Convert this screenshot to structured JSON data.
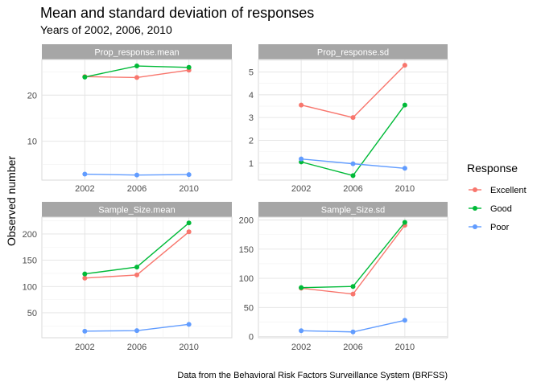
{
  "title": "Mean and standard deviation of responses",
  "subtitle": "Years of 2002, 2006, 2010",
  "caption": "Data from the Behavioral Risk Factors Surveillance System (BRFSS)",
  "ylabel": "Observed number",
  "legend": {
    "title": "Response",
    "placement": "right",
    "items": [
      {
        "label": "Excellent",
        "color": "#F8766D"
      },
      {
        "label": "Good",
        "color": "#00BA38"
      },
      {
        "label": "Poor",
        "color": "#619CFF"
      }
    ]
  },
  "chart_data": [
    {
      "type": "line",
      "title": "Prop_response.mean",
      "x": [
        2002,
        2006,
        2010
      ],
      "xticks": [
        "2002",
        "2006",
        "2010"
      ],
      "xlim": [
        1998.7,
        2013.3
      ],
      "ylim": [
        1.6,
        27.7
      ],
      "yticks": [
        10,
        20
      ],
      "grid": true,
      "series": [
        {
          "name": "Excellent",
          "color": "#F8766D",
          "values": [
            24.0,
            23.8,
            25.4
          ]
        },
        {
          "name": "Good",
          "color": "#00BA38",
          "values": [
            23.9,
            26.3,
            26.0
          ]
        },
        {
          "name": "Poor",
          "color": "#619CFF",
          "values": [
            2.9,
            2.7,
            2.8
          ]
        }
      ]
    },
    {
      "type": "line",
      "title": "Prop_response.sd",
      "x": [
        2002,
        2006,
        2010
      ],
      "xticks": [
        "2002",
        "2006",
        "2010"
      ],
      "xlim": [
        1998.7,
        2013.3
      ],
      "ylim": [
        0.25,
        5.55
      ],
      "yticks": [
        1,
        2,
        3,
        4,
        5
      ],
      "grid": true,
      "series": [
        {
          "name": "Excellent",
          "color": "#F8766D",
          "values": [
            3.55,
            3.0,
            5.3
          ]
        },
        {
          "name": "Good",
          "color": "#00BA38",
          "values": [
            1.05,
            0.45,
            3.55
          ]
        },
        {
          "name": "Poor",
          "color": "#619CFF",
          "values": [
            1.18,
            0.97,
            0.77
          ]
        }
      ]
    },
    {
      "type": "line",
      "title": "Sample_Size.mean",
      "x": [
        2002,
        2006,
        2010
      ],
      "xticks": [
        "2002",
        "2006",
        "2010"
      ],
      "xlim": [
        1998.7,
        2013.3
      ],
      "ylim": [
        2.5,
        232
      ],
      "yticks": [
        50,
        100,
        150,
        200
      ],
      "grid": true,
      "series": [
        {
          "name": "Excellent",
          "color": "#F8766D",
          "values": [
            116,
            122,
            204
          ]
        },
        {
          "name": "Good",
          "color": "#00BA38",
          "values": [
            124,
            137,
            221
          ]
        },
        {
          "name": "Poor",
          "color": "#619CFF",
          "values": [
            15,
            16,
            28
          ]
        }
      ]
    },
    {
      "type": "line",
      "title": "Sample_Size.sd",
      "x": [
        2002,
        2006,
        2010
      ],
      "xticks": [
        "2002",
        "2006",
        "2010"
      ],
      "xlim": [
        1998.7,
        2013.3
      ],
      "ylim": [
        -2,
        205
      ],
      "yticks": [
        0,
        50,
        100,
        150,
        200
      ],
      "grid": true,
      "series": [
        {
          "name": "Excellent",
          "color": "#F8766D",
          "values": [
            83,
            73,
            191
          ]
        },
        {
          "name": "Good",
          "color": "#00BA38",
          "values": [
            84,
            86,
            196
          ]
        },
        {
          "name": "Poor",
          "color": "#619CFF",
          "values": [
            10,
            8,
            28
          ]
        }
      ]
    }
  ]
}
